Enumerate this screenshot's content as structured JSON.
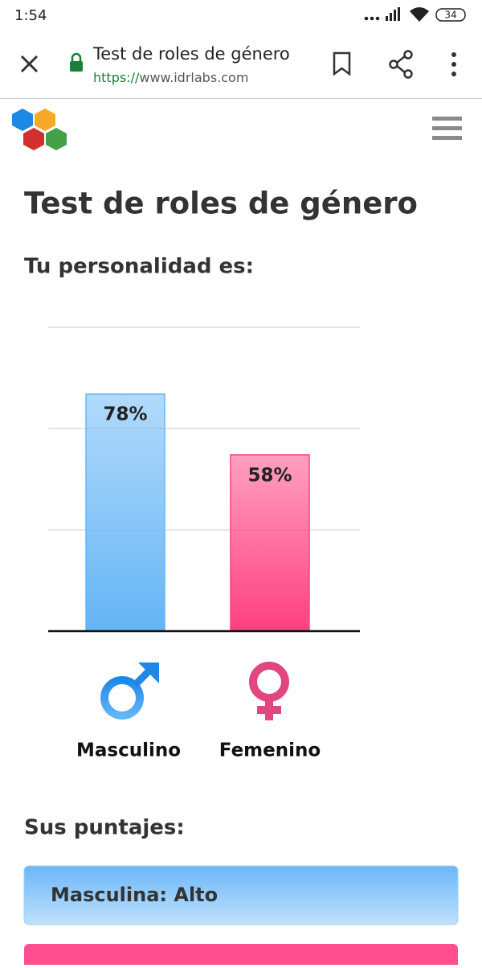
{
  "status_bar": {
    "time": "1:54",
    "battery": "34"
  },
  "browser": {
    "title": "Test de roles de género",
    "url_scheme": "https://",
    "url_host": "www.idrlabs.com"
  },
  "page": {
    "heading": "Test de roles de género",
    "subheading": "Tu personalidad es:",
    "chart_data": {
      "type": "bar",
      "categories": [
        "Masculino",
        "Femenino"
      ],
      "series": [
        {
          "values": [
            78,
            58
          ],
          "value_labels": [
            "78%",
            "58%"
          ],
          "colors": [
            "#64b5f6",
            "#ff4081"
          ]
        }
      ],
      "ylim": [
        0,
        100
      ],
      "gridlines": [
        33.3,
        66.7,
        100
      ],
      "grid": true
    },
    "scores_heading": "Sus puntajes:",
    "scores": [
      "Masculina: Alto"
    ]
  }
}
